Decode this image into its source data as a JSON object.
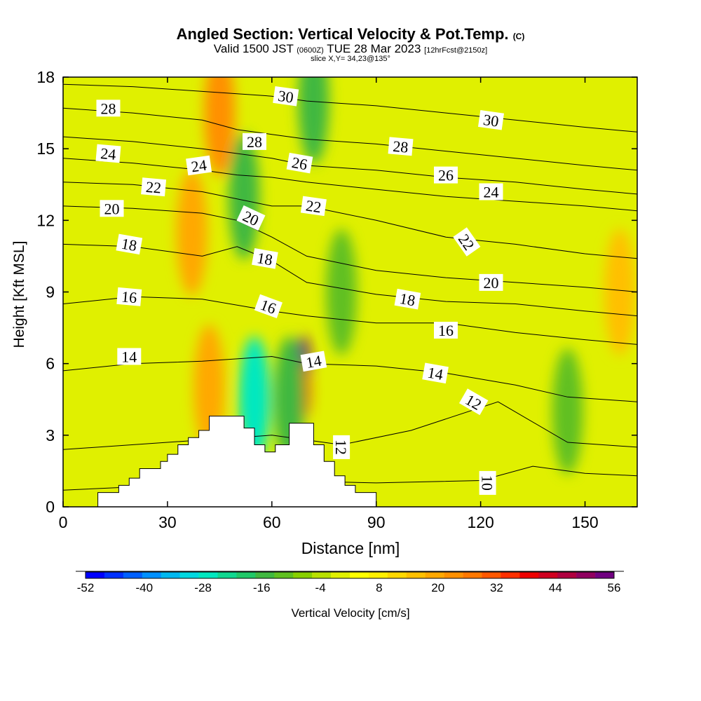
{
  "header": {
    "title_main": "Angled Section: Vertical Velocity & Pot.Temp.",
    "title_tag": "(C)",
    "valid_prefix": "Valid 1500 JST",
    "valid_utc": "(0600Z)",
    "valid_date": "TUE 28 Mar 2023",
    "forecast_info": "[12hrFcst@2150z]",
    "slice_info": "slice X,Y= 34,23@135°"
  },
  "chart_data": {
    "type": "heatmap",
    "xlabel": "Distance [nm]",
    "ylabel": "Height [Kft MSL]",
    "xlim": [
      0,
      165
    ],
    "ylim": [
      0,
      18
    ],
    "x_ticks": [
      0,
      30,
      60,
      90,
      120,
      150
    ],
    "y_ticks": [
      0,
      3,
      6,
      9,
      12,
      15,
      18
    ],
    "colorbar": {
      "label": "Vertical Velocity [cm/s]",
      "min": -52,
      "max": 56,
      "step": 4,
      "tick_labels": [
        -52,
        -40,
        -28,
        -16,
        -4,
        8,
        20,
        32,
        44,
        56
      ],
      "colors": [
        "#0000ff",
        "#0030ff",
        "#0060ff",
        "#0090ff",
        "#00b8f0",
        "#00d8e0",
        "#00e8c0",
        "#10d890",
        "#20c868",
        "#40b840",
        "#60c020",
        "#88d000",
        "#b8e000",
        "#e0f000",
        "#ffff00",
        "#fff000",
        "#ffd800",
        "#ffc000",
        "#ffa800",
        "#ff9000",
        "#ff7800",
        "#ff5800",
        "#ff3000",
        "#ee0000",
        "#d00020",
        "#b00040",
        "#900060",
        "#700080"
      ]
    },
    "velocity_features": [
      {
        "x": 69,
        "y": 6.0,
        "value": 56,
        "note": "strong updraft core"
      },
      {
        "x": 69,
        "y": 4.8,
        "value": 40
      },
      {
        "x": 45,
        "y": 16.5,
        "value": 24
      },
      {
        "x": 37,
        "y": 11.5,
        "value": 20
      },
      {
        "x": 42,
        "y": 5.0,
        "value": 20
      },
      {
        "x": 55,
        "y": 4.5,
        "value": -28
      },
      {
        "x": 65,
        "y": 4.5,
        "value": -16
      },
      {
        "x": 52,
        "y": 13.0,
        "value": -16
      },
      {
        "x": 72,
        "y": 17.0,
        "value": -16
      },
      {
        "x": 80,
        "y": 9.0,
        "value": -12
      },
      {
        "x": 145,
        "y": 4.0,
        "value": -12
      },
      {
        "x": 160,
        "y": 9.0,
        "value": 16
      }
    ],
    "theta_contours": {
      "units": "C",
      "levels": [
        {
          "value": 10,
          "points": [
            [
              0,
              0.7
            ],
            [
              30,
              0.9
            ],
            [
              60,
              1.1
            ],
            [
              90,
              1.0
            ],
            [
              120,
              1.1
            ],
            [
              135,
              1.7
            ],
            [
              150,
              1.4
            ],
            [
              165,
              1.3
            ]
          ]
        },
        {
          "value": 12,
          "points": [
            [
              0,
              2.4
            ],
            [
              30,
              2.7
            ],
            [
              60,
              3.0
            ],
            [
              80,
              2.6
            ],
            [
              100,
              3.2
            ],
            [
              125,
              4.4
            ],
            [
              145,
              2.7
            ],
            [
              165,
              2.5
            ]
          ]
        },
        {
          "value": 14,
          "points": [
            [
              0,
              5.7
            ],
            [
              20,
              6.0
            ],
            [
              40,
              6.1
            ],
            [
              60,
              6.3
            ],
            [
              70,
              6.0
            ],
            [
              90,
              5.9
            ],
            [
              110,
              5.6
            ],
            [
              130,
              5.1
            ],
            [
              145,
              4.6
            ],
            [
              165,
              4.4
            ]
          ]
        },
        {
          "value": 16,
          "points": [
            [
              0,
              8.5
            ],
            [
              20,
              8.8
            ],
            [
              40,
              8.7
            ],
            [
              60,
              8.2
            ],
            [
              70,
              8.0
            ],
            [
              90,
              7.7
            ],
            [
              110,
              7.7
            ],
            [
              130,
              7.3
            ],
            [
              150,
              7.0
            ],
            [
              165,
              6.8
            ]
          ]
        },
        {
          "value": 18,
          "points": [
            [
              0,
              11.0
            ],
            [
              20,
              10.9
            ],
            [
              40,
              10.5
            ],
            [
              50,
              10.9
            ],
            [
              60,
              10.3
            ],
            [
              70,
              9.4
            ],
            [
              90,
              8.9
            ],
            [
              110,
              8.6
            ],
            [
              130,
              8.5
            ],
            [
              150,
              8.2
            ],
            [
              165,
              8.0
            ]
          ]
        },
        {
          "value": 20,
          "points": [
            [
              0,
              12.6
            ],
            [
              20,
              12.5
            ],
            [
              40,
              12.3
            ],
            [
              50,
              12.0
            ],
            [
              60,
              11.3
            ],
            [
              70,
              10.5
            ],
            [
              90,
              9.9
            ],
            [
              110,
              9.6
            ],
            [
              130,
              9.4
            ],
            [
              150,
              9.2
            ],
            [
              165,
              9.0
            ]
          ]
        },
        {
          "value": 22,
          "points": [
            [
              0,
              13.6
            ],
            [
              20,
              13.5
            ],
            [
              40,
              13.2
            ],
            [
              50,
              12.9
            ],
            [
              60,
              12.6
            ],
            [
              70,
              12.6
            ],
            [
              90,
              12.0
            ],
            [
              110,
              11.3
            ],
            [
              130,
              11.0
            ],
            [
              150,
              10.6
            ],
            [
              165,
              10.4
            ]
          ]
        },
        {
          "value": 24,
          "points": [
            [
              0,
              14.6
            ],
            [
              20,
              14.4
            ],
            [
              40,
              14.1
            ],
            [
              50,
              13.9
            ],
            [
              60,
              13.8
            ],
            [
              70,
              13.6
            ],
            [
              90,
              13.3
            ],
            [
              110,
              13.0
            ],
            [
              130,
              12.8
            ],
            [
              150,
              12.6
            ],
            [
              165,
              12.4
            ]
          ]
        },
        {
          "value": 26,
          "points": [
            [
              0,
              15.5
            ],
            [
              20,
              15.3
            ],
            [
              40,
              15.0
            ],
            [
              50,
              14.8
            ],
            [
              60,
              14.6
            ],
            [
              70,
              14.3
            ],
            [
              90,
              14.1
            ],
            [
              110,
              13.8
            ],
            [
              130,
              13.6
            ],
            [
              150,
              13.3
            ],
            [
              165,
              13.1
            ]
          ]
        },
        {
          "value": 28,
          "points": [
            [
              0,
              16.7
            ],
            [
              20,
              16.5
            ],
            [
              40,
              16.2
            ],
            [
              50,
              15.8
            ],
            [
              60,
              15.6
            ],
            [
              70,
              15.4
            ],
            [
              90,
              15.2
            ],
            [
              110,
              14.9
            ],
            [
              130,
              14.6
            ],
            [
              150,
              14.3
            ],
            [
              165,
              14.1
            ]
          ]
        },
        {
          "value": 30,
          "points": [
            [
              0,
              17.7
            ],
            [
              20,
              17.6
            ],
            [
              40,
              17.4
            ],
            [
              50,
              17.3
            ],
            [
              60,
              17.2
            ],
            [
              70,
              17.0
            ],
            [
              90,
              16.8
            ],
            [
              110,
              16.5
            ],
            [
              130,
              16.2
            ],
            [
              150,
              15.9
            ],
            [
              165,
              15.7
            ]
          ]
        }
      ],
      "labels": [
        {
          "text": "28",
          "x": 13,
          "y": 16.7,
          "angle": 0
        },
        {
          "text": "30",
          "x": 64,
          "y": 17.2,
          "angle": 8
        },
        {
          "text": "30",
          "x": 123,
          "y": 16.2,
          "angle": 8
        },
        {
          "text": "28",
          "x": 55,
          "y": 15.3,
          "angle": 0
        },
        {
          "text": "28",
          "x": 97,
          "y": 15.1,
          "angle": 5
        },
        {
          "text": "24",
          "x": 13,
          "y": 14.8,
          "angle": 5
        },
        {
          "text": "24",
          "x": 39,
          "y": 14.3,
          "angle": -8
        },
        {
          "text": "26",
          "x": 68,
          "y": 14.4,
          "angle": 10
        },
        {
          "text": "26",
          "x": 110,
          "y": 13.9,
          "angle": 0
        },
        {
          "text": "22",
          "x": 26,
          "y": 13.4,
          "angle": 5
        },
        {
          "text": "24",
          "x": 123,
          "y": 13.2,
          "angle": 0
        },
        {
          "text": "20",
          "x": 14,
          "y": 12.5,
          "angle": 0
        },
        {
          "text": "22",
          "x": 72,
          "y": 12.6,
          "angle": 8
        },
        {
          "text": "20",
          "x": 54,
          "y": 12.1,
          "angle": 25
        },
        {
          "text": "22",
          "x": 116,
          "y": 11.1,
          "angle": 55
        },
        {
          "text": "18",
          "x": 19,
          "y": 11.0,
          "angle": 10
        },
        {
          "text": "18",
          "x": 58,
          "y": 10.4,
          "angle": 10
        },
        {
          "text": "20",
          "x": 123,
          "y": 9.4,
          "angle": 0
        },
        {
          "text": "16",
          "x": 19,
          "y": 8.8,
          "angle": 5
        },
        {
          "text": "18",
          "x": 99,
          "y": 8.7,
          "angle": 10
        },
        {
          "text": "16",
          "x": 59,
          "y": 8.4,
          "angle": 20
        },
        {
          "text": "16",
          "x": 110,
          "y": 7.4,
          "angle": 0
        },
        {
          "text": "14",
          "x": 19,
          "y": 6.3,
          "angle": 0
        },
        {
          "text": "14",
          "x": 72,
          "y": 6.1,
          "angle": -10
        },
        {
          "text": "14",
          "x": 107,
          "y": 5.6,
          "angle": 10
        },
        {
          "text": "12",
          "x": 118,
          "y": 4.4,
          "angle": 30
        },
        {
          "text": "12",
          "x": 80,
          "y": 2.5,
          "angle": 90
        },
        {
          "text": "10",
          "x": 122,
          "y": 1.0,
          "angle": 90
        }
      ]
    },
    "terrain": [
      [
        0,
        0
      ],
      [
        10,
        0
      ],
      [
        10,
        0.6
      ],
      [
        16,
        0.6
      ],
      [
        16,
        0.9
      ],
      [
        19,
        0.9
      ],
      [
        19,
        1.2
      ],
      [
        22,
        1.2
      ],
      [
        22,
        1.6
      ],
      [
        28,
        1.6
      ],
      [
        28,
        1.9
      ],
      [
        30,
        1.9
      ],
      [
        30,
        2.2
      ],
      [
        33,
        2.2
      ],
      [
        33,
        2.6
      ],
      [
        36,
        2.6
      ],
      [
        36,
        2.9
      ],
      [
        39,
        2.9
      ],
      [
        39,
        3.2
      ],
      [
        42,
        3.2
      ],
      [
        42,
        3.8
      ],
      [
        52,
        3.8
      ],
      [
        52,
        3.3
      ],
      [
        55,
        3.3
      ],
      [
        55,
        2.6
      ],
      [
        58,
        2.6
      ],
      [
        58,
        2.3
      ],
      [
        61,
        2.3
      ],
      [
        61,
        2.6
      ],
      [
        65,
        2.6
      ],
      [
        65,
        3.5
      ],
      [
        72,
        3.5
      ],
      [
        72,
        2.6
      ],
      [
        75,
        2.6
      ],
      [
        75,
        1.9
      ],
      [
        78,
        1.9
      ],
      [
        78,
        1.3
      ],
      [
        81,
        1.3
      ],
      [
        81,
        0.9
      ],
      [
        84,
        0.9
      ],
      [
        84,
        0.6
      ],
      [
        90,
        0.6
      ],
      [
        90,
        0
      ],
      [
        165,
        0
      ]
    ]
  }
}
